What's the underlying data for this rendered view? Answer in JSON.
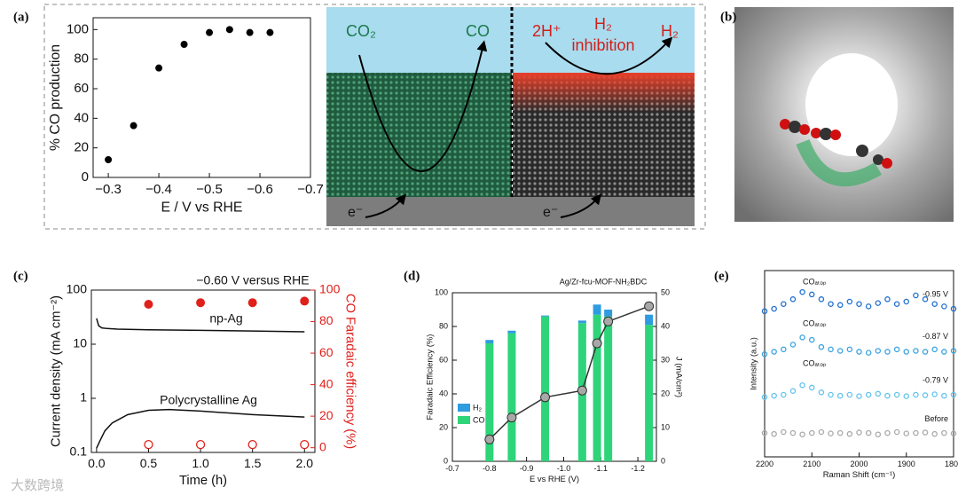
{
  "chart_data": [
    {
      "type": "scatter",
      "panel": "(a)",
      "xlabel": "E / V vs RHE",
      "ylabel": "% CO production",
      "x": [
        -0.3,
        -0.35,
        -0.4,
        -0.45,
        -0.5,
        -0.54,
        -0.58,
        -0.62
      ],
      "series": [
        {
          "color": "#000000",
          "marker": "filled",
          "values": [
            12,
            35,
            74,
            90,
            98,
            100,
            98,
            98
          ]
        }
      ],
      "xlim": [
        -0.27,
        -0.7
      ],
      "xticks": [
        {
          "value": -0.3,
          "label": "−0.3"
        },
        {
          "value": -0.4,
          "label": "−0.4"
        },
        {
          "value": -0.5,
          "label": "−0.5"
        },
        {
          "value": -0.6,
          "label": "−0.6"
        },
        {
          "value": -0.7,
          "label": "−0.7"
        }
      ],
      "ylim": [
        0,
        108
      ],
      "yticks": [
        0,
        20,
        40,
        60,
        80,
        100
      ]
    },
    {
      "type": "line",
      "panel": "(c)",
      "title": "−0.60 V versus RHE",
      "xlabel": "Time (h)",
      "ylabel": "Current density (mA cm⁻²)",
      "y2label": "CO Faradaic efficiency (%)",
      "ylog": true,
      "xlim": [
        -0.05,
        2.1
      ],
      "xticks": [
        {
          "value": 0,
          "label": "0.0"
        },
        {
          "value": 0.5,
          "label": "0.5"
        },
        {
          "value": 1,
          "label": "1.0"
        },
        {
          "value": 1.5,
          "label": "1.5"
        },
        {
          "value": 2,
          "label": "2.0"
        }
      ],
      "ylim": [
        0.1,
        100
      ],
      "yticks": [
        0.1,
        1,
        10,
        100
      ],
      "y2lim": [
        -3,
        100
      ],
      "y2ticks": [
        0,
        20,
        40,
        60,
        80,
        100
      ],
      "series": [
        {
          "name": "np-Ag",
          "color": "#111111",
          "x": [
            0,
            0.02,
            0.05,
            0.1,
            0.2,
            0.5,
            1,
            1.5,
            2
          ],
          "values": [
            30,
            22,
            20,
            19.5,
            19,
            18.5,
            18,
            17.5,
            17
          ]
        },
        {
          "name": "Polycrystalline Ag",
          "color": "#111111",
          "x": [
            0,
            0.03,
            0.08,
            0.15,
            0.3,
            0.5,
            0.7,
            1,
            1.5,
            2
          ],
          "values": [
            0.12,
            0.16,
            0.25,
            0.35,
            0.5,
            0.6,
            0.62,
            0.58,
            0.5,
            0.45
          ]
        },
        {
          "type": "scatter",
          "axis": "y2",
          "marker": "filled",
          "color": "#e0201b",
          "x": [
            0.5,
            1,
            1.5,
            2
          ],
          "values": [
            91,
            92,
            92,
            93
          ]
        },
        {
          "type": "scatter",
          "axis": "y2",
          "marker": "open",
          "color": "#e0201b",
          "x": [
            0.5,
            1,
            1.5,
            2
          ],
          "values": [
            2,
            2,
            2,
            2
          ]
        }
      ]
    },
    {
      "type": "bar",
      "panel": "(d)",
      "title": "Ag/Zr-fcu-MOF-NH₂BDC",
      "xlabel": "E vs RHE (V)",
      "ylabel": "Faradaic Efficiency (%)",
      "y2label": "J (mA/cm²)",
      "stacked": true,
      "legend": "lower left",
      "xlim": [
        -0.7,
        -1.25
      ],
      "xticks": [
        -0.7,
        -0.8,
        -0.9,
        {
          "value": -1,
          "label": "-1.0"
        },
        -1.1,
        -1.2
      ],
      "ylim": [
        0,
        100
      ],
      "yticks": [
        0,
        20,
        40,
        60,
        80,
        100
      ],
      "y2lim": [
        0,
        50
      ],
      "y2ticks": [
        0,
        10,
        20,
        30,
        40,
        50
      ],
      "x": [
        -0.8,
        -0.86,
        -0.95,
        -1.05,
        -1.09,
        -1.12,
        -1.23
      ],
      "series": [
        {
          "name": "CO",
          "type": "bar",
          "color": "#2ed47a",
          "values": [
            70,
            76,
            86,
            82,
            87,
            86,
            81
          ]
        },
        {
          "name": "H₂",
          "type": "bar",
          "color": "#2f9be0",
          "values": [
            2,
            1.5,
            0.5,
            1.5,
            6,
            4,
            6
          ]
        },
        {
          "type": "line",
          "axis": "y2",
          "marker": "filled",
          "color": "#a8a8a8",
          "values": [
            6.5,
            13,
            19,
            21,
            35,
            41.5,
            46
          ]
        }
      ]
    },
    {
      "type": "scatter",
      "panel": "(e)",
      "xlabel": "Raman Shift (cm⁻¹)",
      "ylabel": "Intensity (a.u.)",
      "annotations": [
        "COₐₜₒₚ",
        "COₐₜₒₚ",
        "COₐₜₒₚ"
      ],
      "xlim": [
        2200,
        1800
      ],
      "xticks": [
        2200,
        2100,
        2000,
        1900,
        1800
      ],
      "ylim": [
        0,
        3.9
      ],
      "x": [
        2200,
        2180,
        2160,
        2140,
        2120,
        2100,
        2080,
        2060,
        2040,
        2020,
        2000,
        1980,
        1960,
        1940,
        1920,
        1900,
        1880,
        1860,
        1840,
        1820,
        1800
      ],
      "series": [
        {
          "name": "-0.95 V",
          "marker": "open",
          "color": "#1f6fd1",
          "values": [
            3.05,
            3.1,
            3.2,
            3.3,
            3.45,
            3.4,
            3.3,
            3.2,
            3.18,
            3.25,
            3.2,
            3.15,
            3.22,
            3.3,
            3.2,
            3.25,
            3.38,
            3.3,
            3.2,
            3.15,
            3.1
          ]
        },
        {
          "name": "-0.87 V",
          "marker": "open",
          "color": "#3aa3e0",
          "values": [
            2.15,
            2.2,
            2.25,
            2.35,
            2.5,
            2.45,
            2.3,
            2.25,
            2.22,
            2.25,
            2.2,
            2.18,
            2.22,
            2.2,
            2.25,
            2.2,
            2.22,
            2.2,
            2.25,
            2.2,
            2.22
          ]
        },
        {
          "name": "-0.79 V",
          "marker": "open",
          "color": "#62c3ee",
          "values": [
            1.25,
            1.28,
            1.3,
            1.38,
            1.5,
            1.45,
            1.35,
            1.3,
            1.28,
            1.3,
            1.27,
            1.3,
            1.32,
            1.28,
            1.3,
            1.27,
            1.3,
            1.29,
            1.31,
            1.28,
            1.3
          ]
        },
        {
          "name": "Before",
          "marker": "open",
          "color": "#a9a9a9",
          "values": [
            0.5,
            0.48,
            0.52,
            0.5,
            0.47,
            0.5,
            0.52,
            0.49,
            0.5,
            0.48,
            0.51,
            0.5,
            0.47,
            0.5,
            0.52,
            0.49,
            0.5,
            0.51,
            0.48,
            0.5,
            0.49
          ]
        }
      ]
    }
  ],
  "diagram": {
    "labels": [
      "CO₂",
      "CO",
      "2H⁺",
      "H₂",
      "inhibition",
      "H₂",
      "e⁻",
      "e⁻"
    ]
  },
  "panel_b": {
    "label": "(b)"
  },
  "watermark": "大数跨境"
}
